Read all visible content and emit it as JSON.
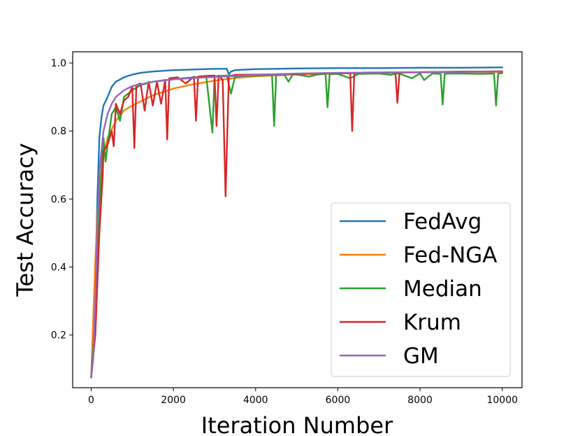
{
  "chart_data": {
    "type": "line",
    "xlabel": "Iteration Number",
    "ylabel": "Test Accuracy",
    "xlim": [
      -450,
      10480
    ],
    "ylim": [
      0.045,
      1.033
    ],
    "xticks": [
      0,
      2000,
      4000,
      6000,
      8000,
      10000
    ],
    "xtick_labels": [
      "0",
      "2000",
      "4000",
      "6000",
      "8000",
      "10000"
    ],
    "yticks": [
      0.2,
      0.4,
      0.6,
      0.8,
      1.0
    ],
    "ytick_labels": [
      "0.2",
      "0.4",
      "0.6",
      "0.8",
      "1.0"
    ],
    "grid": false,
    "legend_position": "lower-right",
    "series": [
      {
        "name": "FedAvg",
        "color": "#1f77b4",
        "x": [
          0,
          50,
          100,
          150,
          200,
          250,
          300,
          400,
          500,
          600,
          800,
          1000,
          1200,
          1500,
          2000,
          2500,
          3000,
          3300,
          3350,
          3400,
          3500,
          4000,
          5000,
          6000,
          7000,
          8000,
          9000,
          10000
        ],
        "y": [
          0.075,
          0.15,
          0.35,
          0.6,
          0.78,
          0.84,
          0.875,
          0.9,
          0.93,
          0.945,
          0.958,
          0.966,
          0.971,
          0.975,
          0.979,
          0.981,
          0.983,
          0.983,
          0.966,
          0.975,
          0.979,
          0.982,
          0.984,
          0.985,
          0.985,
          0.986,
          0.986,
          0.987
        ]
      },
      {
        "name": "Fed-NGA",
        "color": "#ff7f0e",
        "x": [
          0,
          50,
          100,
          150,
          200,
          300,
          400,
          600,
          800,
          1000,
          1500,
          2000,
          2500,
          3000,
          3500,
          4000,
          5000,
          6000,
          7000,
          8000,
          9000,
          10000
        ],
        "y": [
          0.075,
          0.25,
          0.42,
          0.55,
          0.64,
          0.73,
          0.78,
          0.83,
          0.86,
          0.875,
          0.905,
          0.925,
          0.938,
          0.948,
          0.956,
          0.961,
          0.966,
          0.969,
          0.971,
          0.972,
          0.973,
          0.973
        ]
      },
      {
        "name": "Median",
        "color": "#2ca02c",
        "x": [
          0,
          100,
          200,
          300,
          350,
          400,
          500,
          600,
          700,
          800,
          1000,
          1200,
          1500,
          1800,
          2000,
          2200,
          2500,
          2800,
          2950,
          3000,
          3100,
          3300,
          3400,
          3500,
          3700,
          4000,
          4300,
          4400,
          4450,
          4500,
          4700,
          4800,
          4900,
          5000,
          5300,
          5500,
          5700,
          5750,
          5800,
          6000,
          6300,
          6500,
          7000,
          7300,
          7400,
          7500,
          7800,
          8000,
          8100,
          8300,
          8500,
          8550,
          8600,
          8700,
          9000,
          9500,
          9800,
          9850,
          9900,
          10000
        ],
        "y": [
          0.075,
          0.25,
          0.58,
          0.78,
          0.71,
          0.76,
          0.85,
          0.87,
          0.83,
          0.9,
          0.92,
          0.935,
          0.945,
          0.95,
          0.952,
          0.955,
          0.958,
          0.96,
          0.795,
          0.96,
          0.962,
          0.963,
          0.91,
          0.96,
          0.962,
          0.963,
          0.964,
          0.965,
          0.815,
          0.965,
          0.966,
          0.945,
          0.966,
          0.966,
          0.96,
          0.966,
          0.968,
          0.87,
          0.967,
          0.968,
          0.955,
          0.968,
          0.969,
          0.965,
          0.969,
          0.969,
          0.955,
          0.969,
          0.95,
          0.969,
          0.968,
          0.878,
          0.968,
          0.969,
          0.969,
          0.968,
          0.969,
          0.875,
          0.969,
          0.97
        ]
      },
      {
        "name": "Krum",
        "color": "#d62728",
        "x": [
          0,
          100,
          200,
          280,
          300,
          400,
          500,
          550,
          600,
          700,
          800,
          900,
          1000,
          1050,
          1100,
          1200,
          1300,
          1400,
          1500,
          1600,
          1700,
          1800,
          1850,
          1900,
          2100,
          2300,
          2500,
          2550,
          2600,
          2800,
          3000,
          3050,
          3100,
          3200,
          3270,
          3350,
          3500,
          4000,
          4500,
          5000,
          5500,
          6000,
          6300,
          6350,
          6400,
          6700,
          7000,
          7400,
          7450,
          7500,
          8000,
          8500,
          9000,
          9500,
          10000
        ],
        "y": [
          0.075,
          0.2,
          0.5,
          0.665,
          0.74,
          0.76,
          0.8,
          0.755,
          0.88,
          0.85,
          0.89,
          0.9,
          0.93,
          0.75,
          0.935,
          0.94,
          0.86,
          0.945,
          0.875,
          0.945,
          0.88,
          0.95,
          0.775,
          0.955,
          0.958,
          0.94,
          0.96,
          0.83,
          0.96,
          0.962,
          0.963,
          0.815,
          0.963,
          0.95,
          0.608,
          0.962,
          0.965,
          0.966,
          0.967,
          0.968,
          0.969,
          0.97,
          0.97,
          0.8,
          0.97,
          0.972,
          0.972,
          0.972,
          0.883,
          0.972,
          0.973,
          0.974,
          0.975,
          0.975,
          0.976
        ]
      },
      {
        "name": "GM",
        "color": "#9467bd",
        "x": [
          0,
          50,
          100,
          150,
          200,
          300,
          400,
          500,
          600,
          800,
          1000,
          1500,
          2000,
          2500,
          3000,
          3500,
          4000,
          5000,
          6000,
          7000,
          8000,
          9000,
          10000
        ],
        "y": [
          0.075,
          0.13,
          0.3,
          0.52,
          0.68,
          0.8,
          0.85,
          0.88,
          0.9,
          0.92,
          0.932,
          0.945,
          0.952,
          0.956,
          0.959,
          0.962,
          0.965,
          0.969,
          0.971,
          0.972,
          0.973,
          0.974,
          0.975
        ]
      }
    ]
  }
}
